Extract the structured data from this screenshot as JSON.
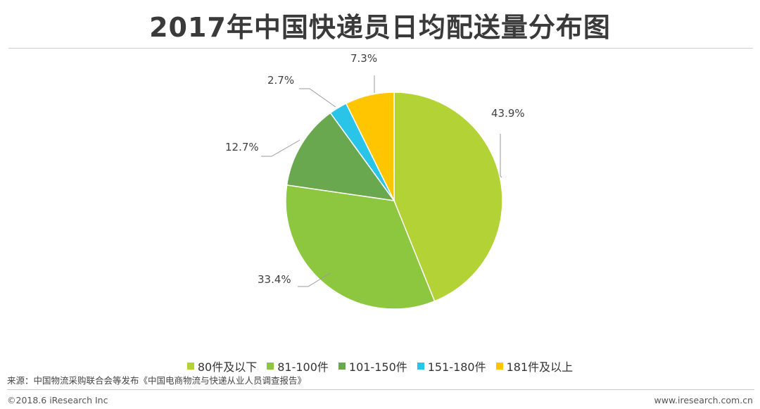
{
  "chart_data": {
    "type": "pie",
    "title": "2017年中国快递员日均配送量分布图",
    "categories": [
      "80件及以下",
      "81-100件",
      "101-150件",
      "151-180件",
      "181件及以上"
    ],
    "values": [
      43.9,
      33.4,
      12.7,
      2.7,
      7.3
    ],
    "value_labels": [
      "43.9%",
      "33.4%",
      "12.7%",
      "2.7%",
      "7.3%"
    ],
    "colors": [
      "#b3d235",
      "#8dc63f",
      "#6aa84f",
      "#29c4e8",
      "#ffc600"
    ],
    "start": "12 o'clock",
    "direction": "clockwise",
    "legend": "bottom"
  },
  "footer": {
    "source": "来源：中国物流采购联合会等发布《中国电商物流与快递从业人员调查报告》",
    "copyright": "©2018.6 iResearch Inc",
    "website": "www.iresearch.com.cn"
  }
}
